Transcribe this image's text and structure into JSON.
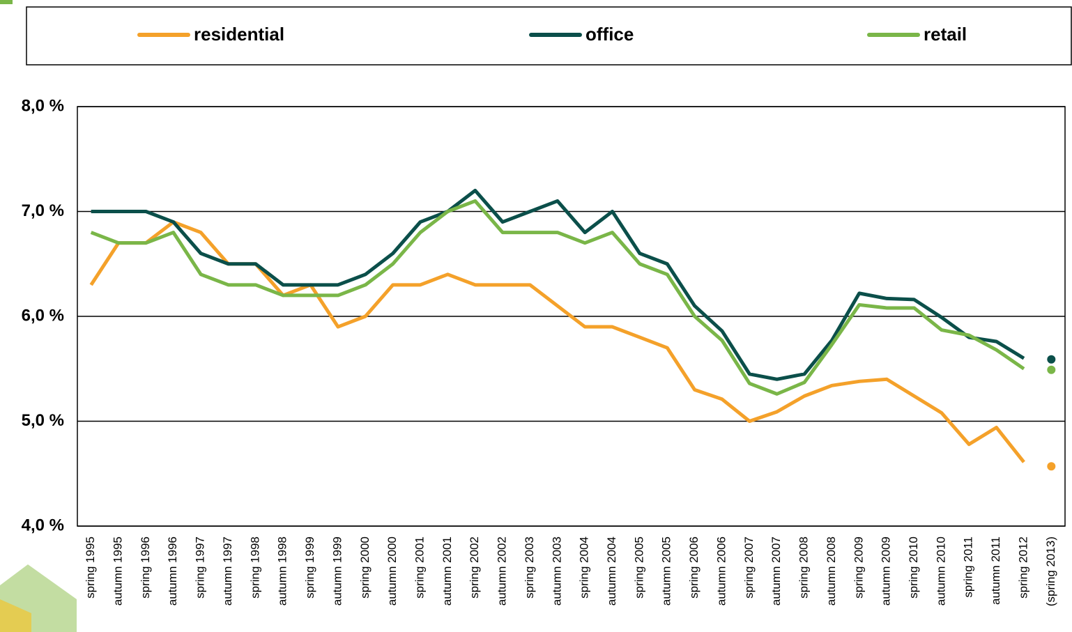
{
  "chart_data": {
    "type": "line",
    "categories": [
      "spring 1995",
      "autumn 1995",
      "spring 1996",
      "autumn 1996",
      "spring 1997",
      "autumn 1997",
      "spring 1998",
      "autumn 1998",
      "spring 1999",
      "autumn 1999",
      "spring 2000",
      "autumn 2000",
      "spring 2001",
      "autumn 2001",
      "spring 2002",
      "autumn 2002",
      "spring 2003",
      "autumn 2003",
      "spring 2004",
      "autumn 2004",
      "spring 2005",
      "autumn 2005",
      "spring 2006",
      "autumn 2006",
      "spring 2007",
      "autumn 2007",
      "spring 2008",
      "autumn 2008",
      "spring 2009",
      "autumn 2009",
      "spring 2010",
      "autumn 2010",
      "spring 2011",
      "autumn 2011",
      "spring 2012",
      "(spring 2013)"
    ],
    "series": [
      {
        "name": "residential",
        "color": "#f4a12a",
        "values": [
          6.3,
          6.7,
          6.7,
          6.9,
          6.8,
          6.5,
          6.5,
          6.2,
          6.3,
          5.9,
          6.0,
          6.3,
          6.3,
          6.4,
          6.3,
          6.3,
          6.3,
          6.1,
          5.9,
          5.9,
          5.8,
          5.7,
          5.3,
          5.21,
          5.0,
          5.09,
          5.24,
          5.34,
          5.38,
          5.4,
          5.24,
          5.08,
          4.78,
          4.94,
          4.61,
          4.57
        ]
      },
      {
        "name": "office",
        "color": "#0b4f4a",
        "values": [
          7.0,
          7.0,
          7.0,
          6.9,
          6.6,
          6.5,
          6.5,
          6.3,
          6.3,
          6.3,
          6.4,
          6.6,
          6.9,
          7.0,
          7.2,
          6.9,
          7.0,
          7.1,
          6.8,
          7.0,
          6.6,
          6.5,
          6.1,
          5.86,
          5.45,
          5.4,
          5.45,
          5.77,
          6.22,
          6.17,
          6.16,
          5.99,
          5.8,
          5.76,
          5.6,
          5.59
        ]
      },
      {
        "name": "retail",
        "color": "#7ab648",
        "values": [
          6.8,
          6.7,
          6.7,
          6.8,
          6.4,
          6.3,
          6.3,
          6.2,
          6.2,
          6.2,
          6.3,
          6.5,
          6.8,
          7.0,
          7.1,
          6.8,
          6.8,
          6.8,
          6.7,
          6.8,
          6.5,
          6.4,
          6.0,
          5.77,
          5.36,
          5.26,
          5.37,
          5.73,
          6.11,
          6.08,
          6.08,
          5.87,
          5.82,
          5.68,
          5.5,
          5.49
        ]
      }
    ],
    "last_point_as_dot": true,
    "ylim": [
      4,
      8
    ],
    "yticks": [
      {
        "value": 4,
        "label": "4,0 %"
      },
      {
        "value": 5,
        "label": "5,0 %"
      },
      {
        "value": 6,
        "label": "6,0 %"
      },
      {
        "value": 7,
        "label": "7,0 %"
      },
      {
        "value": 8,
        "label": "8,0 %"
      }
    ],
    "grid": true
  }
}
